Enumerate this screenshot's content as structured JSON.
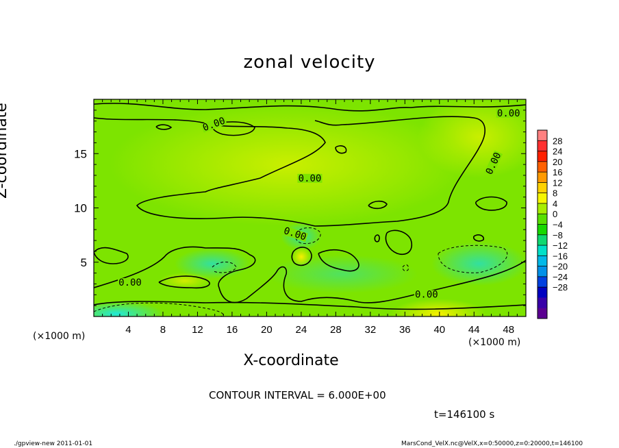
{
  "title": "zonal velocity",
  "chart_data": {
    "type": "heatmap",
    "title": "zonal velocity",
    "xlabel": "X-coordinate",
    "ylabel": "Z-coordinate",
    "x_unit": "(×1000 m)",
    "xlim": [
      0,
      50
    ],
    "ylim": [
      0,
      20
    ],
    "x_ticks": [
      4,
      8,
      12,
      16,
      20,
      24,
      28,
      32,
      36,
      40,
      44,
      48
    ],
    "y_ticks": [
      5,
      10,
      15
    ],
    "contour_label": "0.00",
    "contour_interval_text": "CONTOUR INTERVAL = 6.000E+00",
    "time_text": "t=146100 s",
    "colorbar": {
      "levels": [
        28,
        24,
        20,
        16,
        12,
        8,
        4,
        0,
        -4,
        -8,
        -12,
        -16,
        -20,
        -24,
        -28
      ],
      "colors": [
        "#ff8080",
        "#ff3030",
        "#ff2000",
        "#ff6000",
        "#ff9a00",
        "#ffd200",
        "#f6f600",
        "#a8ee00",
        "#58e000",
        "#18d800",
        "#10d870",
        "#00e0c8",
        "#00b8e8",
        "#0090e8",
        "#0040e0",
        "#0000c0",
        "#3800a8",
        "#5a0090"
      ],
      "labels": [
        "28",
        "24",
        "20",
        "16",
        "12",
        "8",
        "4",
        "0",
        "−4",
        "−8",
        "−12",
        "−16",
        "−20",
        "−24",
        "−28"
      ]
    }
  },
  "footer": {
    "left": "./gpview-new   2011-01-01",
    "right": "MarsCond_VelX.nc@VelX,x=0:50000,z=0:20000,t=146100"
  }
}
